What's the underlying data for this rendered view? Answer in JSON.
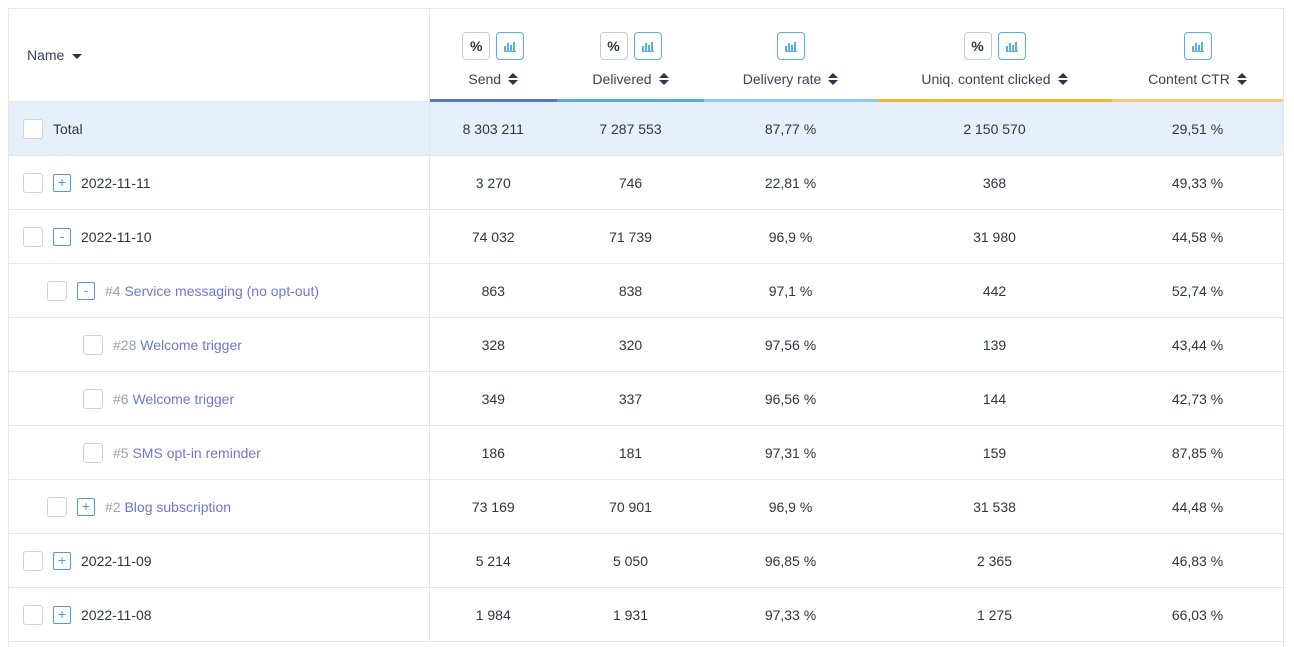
{
  "header": {
    "name_label": "Name",
    "columns": [
      {
        "key": "send",
        "label": "Send",
        "percent_btn": "%",
        "has_percent": true,
        "accent": "#5b73c4"
      },
      {
        "key": "delivered",
        "label": "Delivered",
        "percent_btn": "%",
        "has_percent": true,
        "accent": "#52aee3"
      },
      {
        "key": "rate",
        "label": "Delivery rate",
        "percent_btn": "",
        "has_percent": false,
        "accent": "#8ccbea"
      },
      {
        "key": "uniq",
        "label": "Uniq. content clicked",
        "percent_btn": "%",
        "has_percent": true,
        "accent": "#e9b93e"
      },
      {
        "key": "ctr",
        "label": "Content CTR",
        "percent_btn": "",
        "has_percent": false,
        "accent": "#f2c87a"
      }
    ]
  },
  "rows": [
    {
      "type": "total",
      "level": 0,
      "toggle": "",
      "id": "",
      "name": "Total",
      "send": "8 303 211",
      "delivered": "7 287 553",
      "rate": "87,77 %",
      "uniq": "2 150 570",
      "ctr": "29,51 %"
    },
    {
      "type": "date",
      "level": 0,
      "toggle": "+",
      "id": "",
      "name": "2022-11-11",
      "send": "3 270",
      "delivered": "746",
      "rate": "22,81 %",
      "uniq": "368",
      "ctr": "49,33 %"
    },
    {
      "type": "date",
      "level": 0,
      "toggle": "-",
      "id": "",
      "name": "2022-11-10",
      "send": "74 032",
      "delivered": "71 739",
      "rate": "96,9 %",
      "uniq": "31 980",
      "ctr": "44,58 %"
    },
    {
      "type": "group",
      "level": 1,
      "toggle": "-",
      "id": "#4",
      "name": "Service messaging (no opt-out)",
      "send": "863",
      "delivered": "838",
      "rate": "97,1 %",
      "uniq": "442",
      "ctr": "52,74 %"
    },
    {
      "type": "item",
      "level": 2,
      "toggle": "",
      "id": "#28",
      "name": "Welcome trigger",
      "send": "328",
      "delivered": "320",
      "rate": "97,56 %",
      "uniq": "139",
      "ctr": "43,44 %"
    },
    {
      "type": "item",
      "level": 2,
      "toggle": "",
      "id": "#6",
      "name": "Welcome trigger",
      "send": "349",
      "delivered": "337",
      "rate": "96,56 %",
      "uniq": "144",
      "ctr": "42,73 %"
    },
    {
      "type": "item",
      "level": 2,
      "toggle": "",
      "id": "#5",
      "name": "SMS opt-in reminder",
      "send": "186",
      "delivered": "181",
      "rate": "97,31 %",
      "uniq": "159",
      "ctr": "87,85 %"
    },
    {
      "type": "group",
      "level": 1,
      "toggle": "+",
      "id": "#2",
      "name": "Blog subscription",
      "send": "73 169",
      "delivered": "70 901",
      "rate": "96,9 %",
      "uniq": "31 538",
      "ctr": "44,48 %"
    },
    {
      "type": "date",
      "level": 0,
      "toggle": "+",
      "id": "",
      "name": "2022-11-09",
      "send": "5 214",
      "delivered": "5 050",
      "rate": "96,85 %",
      "uniq": "2 365",
      "ctr": "46,83 %"
    },
    {
      "type": "date",
      "level": 0,
      "toggle": "+",
      "id": "",
      "name": "2022-11-08",
      "send": "1 984",
      "delivered": "1 931",
      "rate": "97,33 %",
      "uniq": "1 275",
      "ctr": "66,03 %"
    }
  ]
}
